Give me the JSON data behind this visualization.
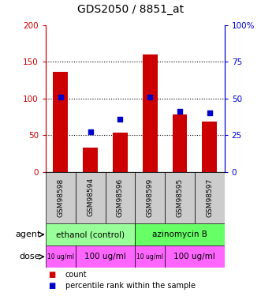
{
  "title": "GDS2050 / 8851_at",
  "samples": [
    "GSM98598",
    "GSM98594",
    "GSM98596",
    "GSM98599",
    "GSM98595",
    "GSM98597"
  ],
  "counts": [
    136,
    33,
    53,
    160,
    78,
    68
  ],
  "percentiles": [
    51,
    27,
    36,
    51,
    41,
    40
  ],
  "count_color": "#cc0000",
  "percentile_color": "#0000cc",
  "ylim_left": [
    0,
    200
  ],
  "ylim_right": [
    0,
    100
  ],
  "yticks_left": [
    0,
    50,
    100,
    150,
    200
  ],
  "ytick_labels_left": [
    "0",
    "50",
    "100",
    "150",
    "200"
  ],
  "yticks_right": [
    0,
    25,
    50,
    75,
    100
  ],
  "ytick_labels_right": [
    "0",
    "25",
    "50",
    "75",
    "100%"
  ],
  "agent_groups": [
    {
      "text": "ethanol (control)",
      "start": 0,
      "end": 3,
      "color": "#99ff99"
    },
    {
      "text": "azinomycin B",
      "start": 3,
      "end": 6,
      "color": "#66ff66"
    }
  ],
  "dose_groups": [
    {
      "text": "10 ug/ml",
      "start": 0,
      "end": 1,
      "color": "#ff66ff",
      "fontsize": 5.5
    },
    {
      "text": "100 ug/ml",
      "start": 1,
      "end": 3,
      "color": "#ff66ff",
      "fontsize": 7.5
    },
    {
      "text": "10 ug/ml",
      "start": 3,
      "end": 4,
      "color": "#ff66ff",
      "fontsize": 5.5
    },
    {
      "text": "100 ug/ml",
      "start": 4,
      "end": 6,
      "color": "#ff66ff",
      "fontsize": 7.5
    }
  ],
  "sample_bg_color": "#cccccc",
  "bar_width": 0.5,
  "dot_size": 25,
  "legend_count_label": "count",
  "legend_pct_label": "percentile rank within the sample"
}
